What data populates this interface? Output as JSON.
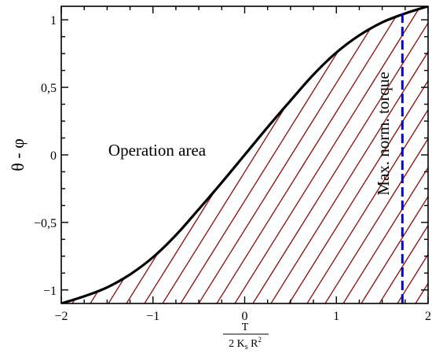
{
  "chart_data": {
    "type": "line",
    "title": "",
    "ylabel": "θ - φ",
    "xlabel": {
      "numerator": "T",
      "denominator": "2 K",
      "denominator_sub": "s",
      "denominator_tail": " R",
      "denominator_sup": "2"
    },
    "xlim": [
      -2,
      2
    ],
    "ylim": [
      -1.1,
      1.1
    ],
    "x_ticks": [
      {
        "value": -2,
        "label": "−2"
      },
      {
        "value": -1,
        "label": "−1"
      },
      {
        "value": 0,
        "label": "0"
      },
      {
        "value": 1,
        "label": "1"
      },
      {
        "value": 2,
        "label": "2"
      }
    ],
    "y_ticks": [
      {
        "value": -1,
        "label": "−1"
      },
      {
        "value": -0.5,
        "label": "−0,5"
      },
      {
        "value": 0,
        "label": "0"
      },
      {
        "value": 0.5,
        "label": "0,5"
      },
      {
        "value": 1,
        "label": "1"
      }
    ],
    "series": [
      {
        "kind": "curve",
        "color": "#000000",
        "x": [
          -2.0,
          -1.75,
          -1.5,
          -1.25,
          -1.0,
          -0.75,
          -0.5,
          -0.25,
          0.0,
          0.25,
          0.5,
          0.75,
          1.0,
          1.25,
          1.5,
          1.75,
          2.0
        ],
        "y": [
          -1.1,
          -1.047,
          -0.981,
          -0.885,
          -0.758,
          -0.594,
          -0.402,
          -0.205,
          0.0,
          0.205,
          0.402,
          0.594,
          0.758,
          0.885,
          0.981,
          1.047,
          1.1
        ]
      }
    ],
    "limit_line": {
      "x": 1.72,
      "color": "#0000dd",
      "style": "dashed"
    },
    "hatch_color": "#8b1a1a",
    "annotations": {
      "operation_area": "Operation area",
      "max_torque": "Max. norm. torque"
    },
    "grid": false
  }
}
